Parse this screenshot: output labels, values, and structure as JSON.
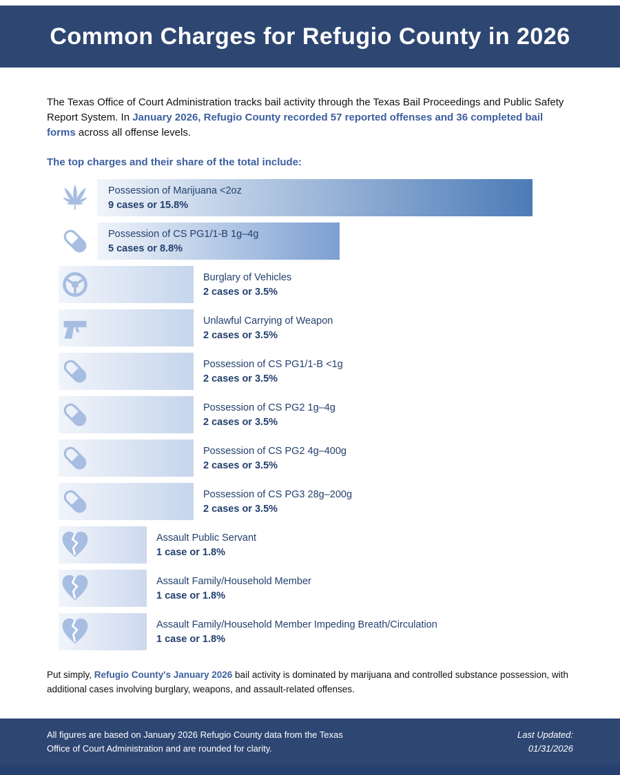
{
  "palette": {
    "header_bg": "#2e4672",
    "accent": "#3c5f9e",
    "text_navy": "#23406e",
    "icon": "#a7bde1",
    "bar_grad_start": "#f1f5fb",
    "strip": "#26406f"
  },
  "header": {
    "title": "Common Charges for Refugio County in 2026"
  },
  "intro": {
    "text_before": "The Texas Office of Court Administration tracks bail activity through the Texas Bail Proceedings and Public Safety Report System. In ",
    "highlight": "January 2026, Refugio County recorded 57 reported offenses and 36 completed bail forms",
    "text_after": " across all offense levels."
  },
  "subheading": "The top charges and their share of the total include:",
  "chart_data": {
    "type": "bar",
    "orientation": "horizontal",
    "title": "The top charges and their share of the total include:",
    "value_unit": "percent of total reported offenses",
    "total_reported_offenses": 57,
    "total_completed_bail_forms": 36,
    "rows": [
      {
        "label": "Possession of Marijuana <2oz",
        "cases": 9,
        "pct": 15.8,
        "value_text": "9 cases or 15.8%",
        "icon": "marijuana-leaf",
        "bar_color": "#4c7bb7"
      },
      {
        "label": "Possession of CS PG1/1-B 1g–4g",
        "cases": 5,
        "pct": 8.8,
        "value_text": "5 cases or 8.8%",
        "icon": "pill",
        "bar_color": "#7c9fd1"
      },
      {
        "label": "Burglary of Vehicles",
        "cases": 2,
        "pct": 3.5,
        "value_text": "2 cases or 3.5%",
        "icon": "steering-wheel",
        "bar_color": "#c6d5ec"
      },
      {
        "label": "Unlawful Carrying of Weapon",
        "cases": 2,
        "pct": 3.5,
        "value_text": "2 cases or 3.5%",
        "icon": "gun",
        "bar_color": "#c6d5ec"
      },
      {
        "label": "Possession of CS PG1/1-B <1g",
        "cases": 2,
        "pct": 3.5,
        "value_text": "2 cases or 3.5%",
        "icon": "pill",
        "bar_color": "#c6d5ec"
      },
      {
        "label": "Possession of CS PG2 1g–4g",
        "cases": 2,
        "pct": 3.5,
        "value_text": "2 cases or 3.5%",
        "icon": "pill",
        "bar_color": "#c6d5ec"
      },
      {
        "label": "Possession of CS PG2 4g–400g",
        "cases": 2,
        "pct": 3.5,
        "value_text": "2 cases or 3.5%",
        "icon": "pill",
        "bar_color": "#c6d5ec"
      },
      {
        "label": "Possession of CS PG3 28g–200g",
        "cases": 2,
        "pct": 3.5,
        "value_text": "2 cases or 3.5%",
        "icon": "pill",
        "bar_color": "#c6d5ec"
      },
      {
        "label": "Assault Public Servant",
        "cases": 1,
        "pct": 1.8,
        "value_text": "1 case or 1.8%",
        "icon": "broken-heart",
        "bar_color": "#cdd9ee"
      },
      {
        "label": "Assault Family/Household Member",
        "cases": 1,
        "pct": 1.8,
        "value_text": "1 case or 1.8%",
        "icon": "broken-heart",
        "bar_color": "#cdd9ee"
      },
      {
        "label": "Assault Family/Household Member Impeding Breath/Circulation",
        "cases": 1,
        "pct": 1.8,
        "value_text": "1 case or 1.8%",
        "icon": "broken-heart",
        "bar_color": "#cdd9ee"
      }
    ]
  },
  "summary": {
    "text_before": "Put simply, ",
    "highlight": "Refugio County's January 2026",
    "text_after": " bail activity is dominated by marijuana and controlled substance possession, with additional cases involving burglary, weapons, and assault-related offenses."
  },
  "footer": {
    "note": "All figures are based on January 2026 Refugio County data from the Texas Office of Court Administration and are rounded for clarity.",
    "last_updated_label": "Last Updated:",
    "last_updated_date": "01/31/2026"
  }
}
